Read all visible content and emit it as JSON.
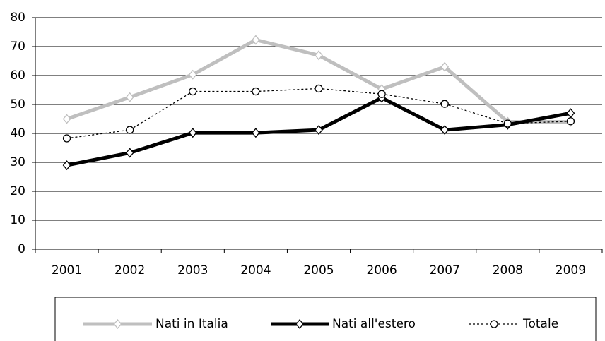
{
  "chart_data": {
    "type": "line",
    "categories": [
      "2001",
      "2002",
      "2003",
      "2004",
      "2005",
      "2006",
      "2007",
      "2008",
      "2009"
    ],
    "series": [
      {
        "name": "Nati in Italia",
        "color": "#bfbfbf",
        "marker": "diamond",
        "line_style": "solid",
        "values": [
          45,
          52.5,
          60.3,
          72.3,
          67,
          55.3,
          63,
          44,
          44
        ]
      },
      {
        "name": "Nati all'estero",
        "color": "#000000",
        "marker": "diamond",
        "line_style": "solid",
        "values": [
          29,
          33.3,
          40.2,
          40.2,
          41.2,
          52.3,
          41.2,
          43,
          47
        ]
      },
      {
        "name": "Totale",
        "color": "#000000",
        "marker": "circle",
        "line_style": "dotted",
        "values": [
          38.3,
          41.2,
          54.5,
          54.5,
          55.5,
          53.6,
          50.2,
          43.4,
          44.2
        ]
      }
    ],
    "ylim": [
      0,
      80
    ],
    "yticks": [
      0,
      10,
      20,
      30,
      40,
      50,
      60,
      70,
      80
    ],
    "grid": true,
    "legend": "bottom"
  }
}
